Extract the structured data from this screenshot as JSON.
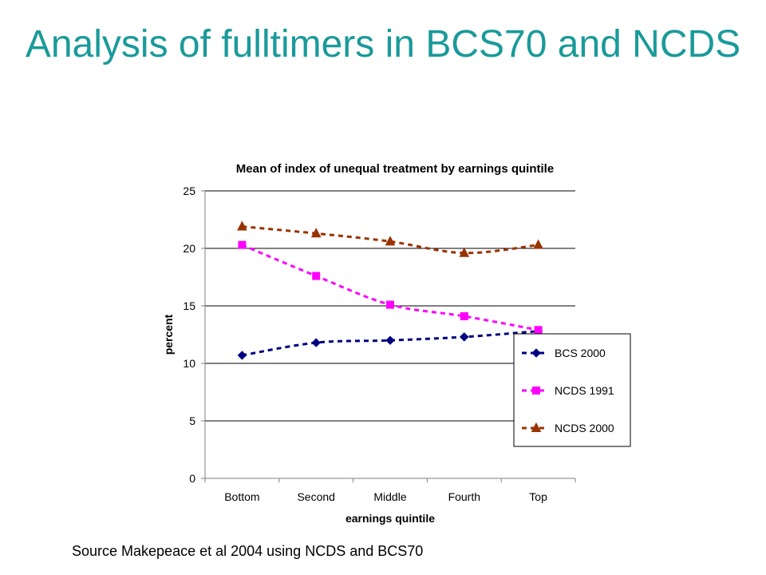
{
  "slide": {
    "title": "Analysis of fulltimers in BCS70 and NCDS",
    "source": "Source Makepeace et al 2004 using NCDS and BCS70"
  },
  "chart_data": {
    "type": "line",
    "title": "Mean of index of unequal treatment by earnings quintile",
    "xlabel": "earnings quintile",
    "ylabel": "percent",
    "categories": [
      "Bottom",
      "Second",
      "Middle",
      "Fourth",
      "Top"
    ],
    "ylim": [
      0,
      25
    ],
    "yticks": [
      0,
      5,
      10,
      15,
      20,
      25
    ],
    "grid": true,
    "legend_position": "right",
    "series": [
      {
        "name": "BCS 2000",
        "values": [
          10.7,
          11.8,
          12.0,
          12.3,
          12.8
        ],
        "color": "#000080",
        "marker": "diamond"
      },
      {
        "name": "NCDS 1991",
        "values": [
          20.3,
          17.6,
          15.1,
          14.1,
          12.9
        ],
        "color": "#ff00ff",
        "marker": "square"
      },
      {
        "name": "NCDS 2000",
        "values": [
          21.9,
          21.3,
          20.6,
          19.6,
          20.3
        ],
        "color": "#993300",
        "marker": "triangle"
      }
    ]
  }
}
